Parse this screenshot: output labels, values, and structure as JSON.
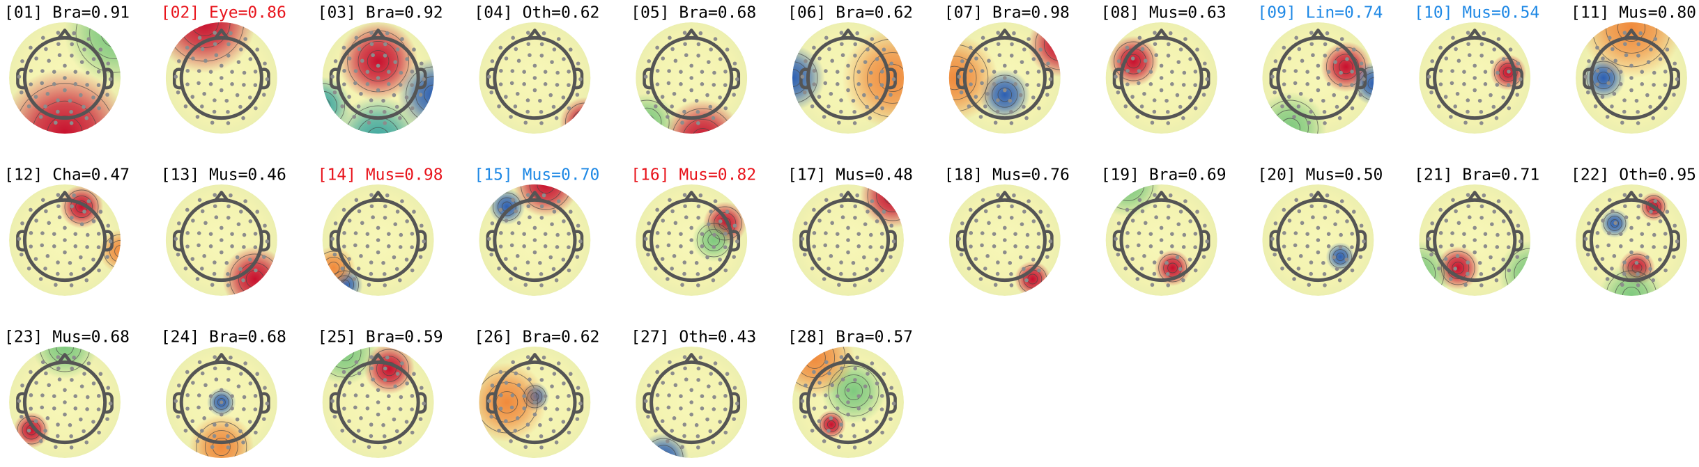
{
  "components": [
    {
      "label": "[01] Bra=0.91",
      "color": "#000000"
    },
    {
      "label": "[02] Eye=0.86",
      "color": "#e8141c"
    },
    {
      "label": "[03] Bra=0.92",
      "color": "#000000"
    },
    {
      "label": "[04] Oth=0.62",
      "color": "#000000"
    },
    {
      "label": "[05] Bra=0.68",
      "color": "#000000"
    },
    {
      "label": "[06] Bra=0.62",
      "color": "#000000"
    },
    {
      "label": "[07] Bra=0.98",
      "color": "#000000"
    },
    {
      "label": "[08] Mus=0.63",
      "color": "#000000"
    },
    {
      "label": "[09] Lin=0.74",
      "color": "#1e88e5"
    },
    {
      "label": "[10] Mus=0.54",
      "color": "#1e88e5"
    },
    {
      "label": "[11] Mus=0.80",
      "color": "#000000"
    },
    {
      "label": "[12] Cha=0.47",
      "color": "#000000"
    },
    {
      "label": "[13] Mus=0.46",
      "color": "#000000"
    },
    {
      "label": "[14] Mus=0.98",
      "color": "#e8141c"
    },
    {
      "label": "[15] Mus=0.70",
      "color": "#1e88e5"
    },
    {
      "label": "[16] Mus=0.82",
      "color": "#e8141c"
    },
    {
      "label": "[17] Mus=0.48",
      "color": "#000000"
    },
    {
      "label": "[18] Mus=0.76",
      "color": "#000000"
    },
    {
      "label": "[19] Bra=0.69",
      "color": "#000000"
    },
    {
      "label": "[20] Mus=0.50",
      "color": "#000000"
    },
    {
      "label": "[21] Bra=0.71",
      "color": "#000000"
    },
    {
      "label": "[22] Oth=0.95",
      "color": "#000000"
    },
    {
      "label": "[23] Mus=0.68",
      "color": "#000000"
    },
    {
      "label": "[24] Bra=0.68",
      "color": "#000000"
    },
    {
      "label": "[25] Bra=0.59",
      "color": "#000000"
    },
    {
      "label": "[26] Bra=0.62",
      "color": "#000000"
    },
    {
      "label": "[27] Oth=0.43",
      "color": "#000000"
    },
    {
      "label": "[28] Bra=0.57",
      "color": "#000000"
    }
  ]
}
